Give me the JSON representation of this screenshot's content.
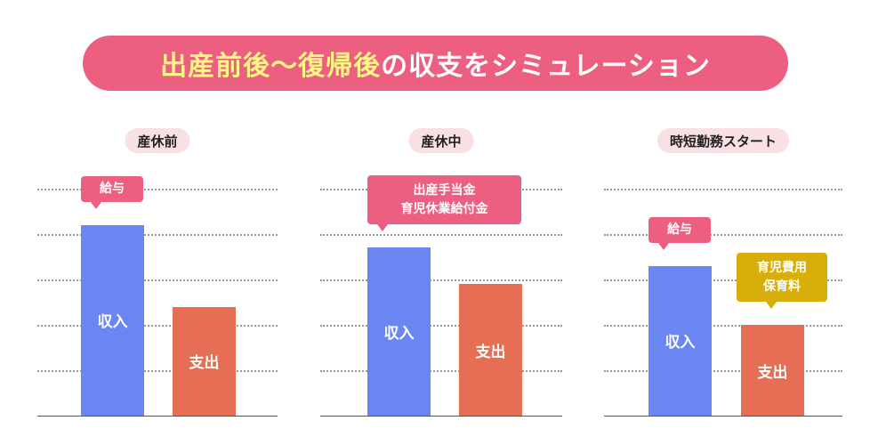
{
  "title": {
    "highlight": "出産前後〜復帰後",
    "rest": "の収支をシミュレーション"
  },
  "colors": {
    "income": "#6a86f2",
    "expense": "#e66e55",
    "pink": "#ec5f80",
    "gold": "#d8ae0a"
  },
  "chart_data": {
    "type": "bar",
    "title": "出産前後〜復帰後の収支をシミュレーション",
    "ylim": [
      0,
      5
    ],
    "grid": true,
    "categories": [
      "産休前",
      "産休中",
      "時短勤務スタート"
    ],
    "series": [
      {
        "name": "収入",
        "values": [
          4.2,
          3.7,
          3.3
        ]
      },
      {
        "name": "支出",
        "values": [
          2.4,
          2.9,
          2.0
        ]
      }
    ]
  },
  "panels": [
    {
      "label": "産休前",
      "income_label": "収入",
      "expense_label": "支出",
      "income_note": [
        "給与"
      ],
      "expense_note": []
    },
    {
      "label": "産休中",
      "income_label": "収入",
      "expense_label": "支出",
      "income_note": [
        "出産手当金",
        "育児休業給付金"
      ],
      "expense_note": []
    },
    {
      "label": "時短勤務スタート",
      "income_label": "収入",
      "expense_label": "支出",
      "income_note": [
        "給与"
      ],
      "expense_note": [
        "育児費用",
        "保育料"
      ]
    }
  ]
}
